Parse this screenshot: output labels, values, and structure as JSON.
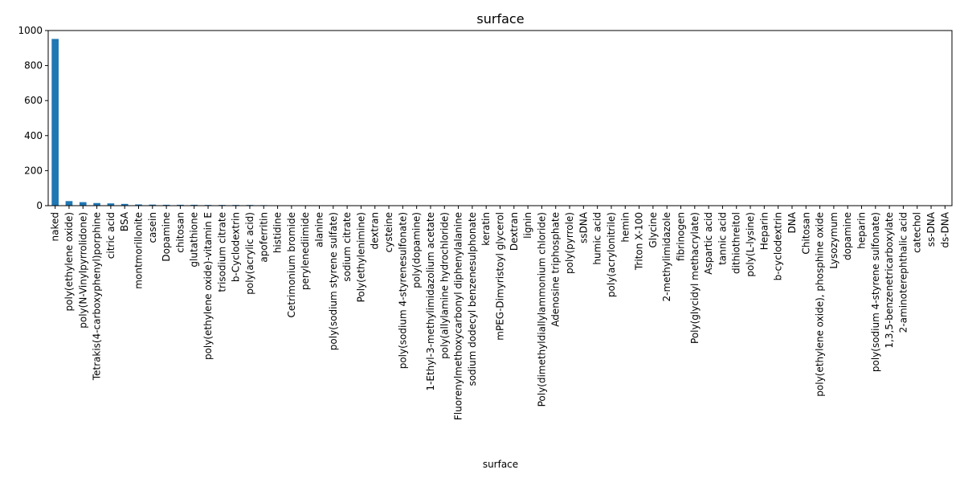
{
  "chart_data": {
    "type": "bar",
    "title": "surface",
    "xlabel": "surface",
    "ylabel": "",
    "ylim": [
      0,
      1000
    ],
    "yticks": [
      0,
      200,
      400,
      600,
      800,
      1000
    ],
    "grid": false,
    "legend": "none",
    "bar_color": "#1f77b4",
    "categories": [
      "naked",
      "poly(ethylene oxide)",
      "poly(N-Vinylpyrrolidone)",
      "Tetrakis(4-carboxyphenyl)porphine",
      "citric acid",
      "BSA",
      "montmorillonite",
      "casein",
      "Dopamine",
      "chitosan",
      "glutathione",
      "poly(ethylene oxide)-vitamin E",
      "trisodium citrate",
      "b-Cyclodextrin",
      "poly(acrylic acid)",
      "apoferritin",
      "histidine",
      "Cetrimonium bromide",
      "perylenediimide",
      "alanine",
      "poly(sodium styrene sulfate)",
      "sodium citrate",
      "Poly(ethylenimine)",
      "dextran",
      "cysteine",
      "poly(sodium 4-styrenesulfonate)",
      "poly(dopamine)",
      "1-Ethyl-3-methylimidazolium acetate",
      "poly(allylamine hydrochloride)",
      "Fluorenylmethoxycarbonyl diphenylalanine",
      "sodium dodecyl benzenesulphonate",
      "keratin",
      "mPEG-Dimyristoyl glycerol",
      "Dextran",
      "lignin",
      "Poly(dimethyldiallylammonium chloride)",
      "Adenosine triphosphate",
      "poly(pyrrole)",
      "ssDNA",
      "humic acid",
      "poly(acrylonitrile)",
      "hemin",
      "Triton X-100",
      "Glycine",
      "2-methylimidazole",
      "fibrinogen",
      "Poly(glycidyl methacrylate)",
      "Aspartic acid",
      "tannic acid",
      "dithiothreitol",
      "poly(L-lysine)",
      "Heparin",
      "b-cyclodextrin",
      "DNA",
      "Chitosan",
      "poly(ethylene oxide), phosphine oxide",
      "Lysozymum",
      "dopamine",
      "heparin",
      "poly(sodium 4-styrene sulfonate)",
      "1,3,5-benzenetricarboxylate",
      "2-aminoterephthalic acid",
      "catechol",
      "ss-DNA",
      "ds-DNA"
    ],
    "values": [
      952,
      26,
      20,
      15,
      13,
      10,
      7,
      6,
      5,
      5,
      5,
      4,
      4,
      4,
      4,
      3,
      2,
      2,
      2,
      2,
      2,
      2,
      2,
      2,
      2,
      2,
      2,
      1,
      1,
      1,
      1,
      1,
      1,
      1,
      1,
      1,
      1,
      1,
      1,
      1,
      1,
      1,
      1,
      1,
      1,
      1,
      1,
      1,
      1,
      1,
      1,
      1,
      1,
      1,
      1,
      1,
      1,
      1,
      1,
      1,
      1,
      1,
      1,
      1,
      1
    ]
  }
}
